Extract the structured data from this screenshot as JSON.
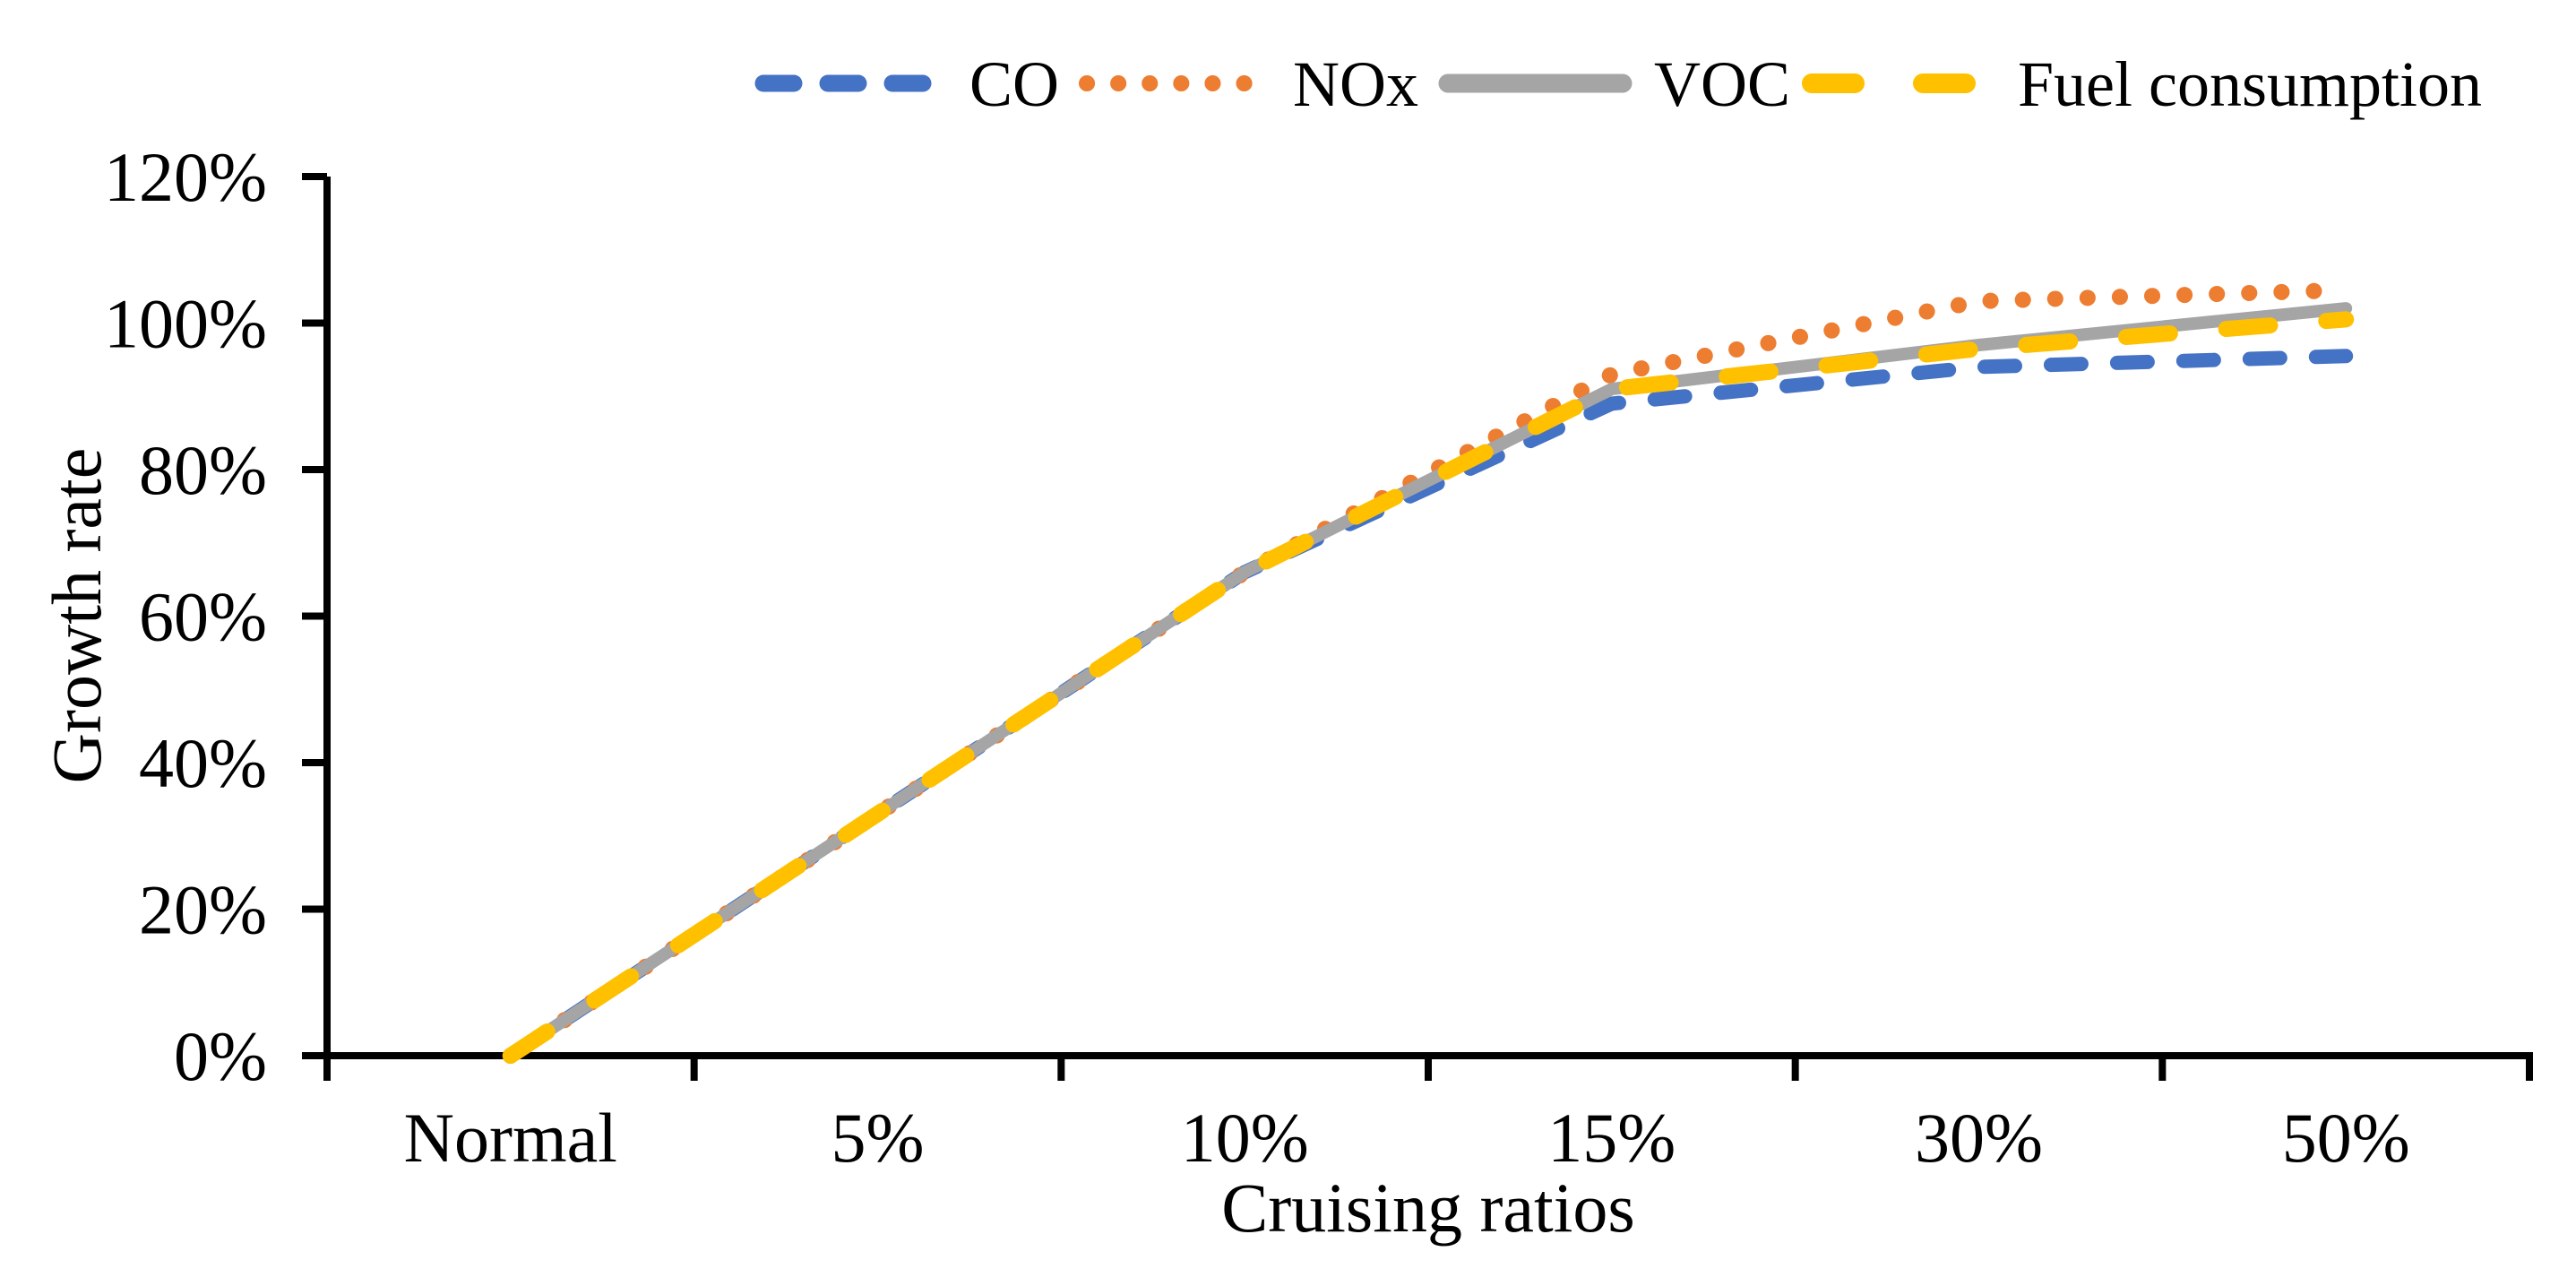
{
  "chart_data": {
    "type": "line",
    "title": "",
    "xlabel": "Cruising ratios",
    "ylabel": "Growth rate",
    "categories": [
      "Normal",
      "5%",
      "10%",
      "15%",
      "30%",
      "50%"
    ],
    "y_tick_labels": [
      "0%",
      "20%",
      "40%",
      "60%",
      "80%",
      "100%",
      "120%"
    ],
    "ylim": [
      0,
      120
    ],
    "grid": false,
    "legend_position": "top-center",
    "background_color": "#FFFFFF",
    "axis_color": "#000000",
    "text_color": "#000000",
    "series": [
      {
        "name": "CO",
        "color": "#4472C4",
        "line_style": "dash",
        "values_pct": [
          0,
          33,
          66,
          89,
          94,
          95.5
        ]
      },
      {
        "name": "NOx",
        "color": "#ED7D31",
        "line_style": "dot",
        "values_pct": [
          0,
          33,
          66,
          93,
          103,
          104.5
        ]
      },
      {
        "name": "VOC",
        "color": "#A5A5A5",
        "line_style": "solid",
        "values_pct": [
          0,
          33,
          66,
          91,
          97,
          102
        ]
      },
      {
        "name": "Fuel consumption",
        "color": "#FFC000",
        "line_style": "long-dash",
        "values_pct": [
          0,
          33,
          66,
          91,
          96.5,
          100.5
        ]
      }
    ]
  }
}
